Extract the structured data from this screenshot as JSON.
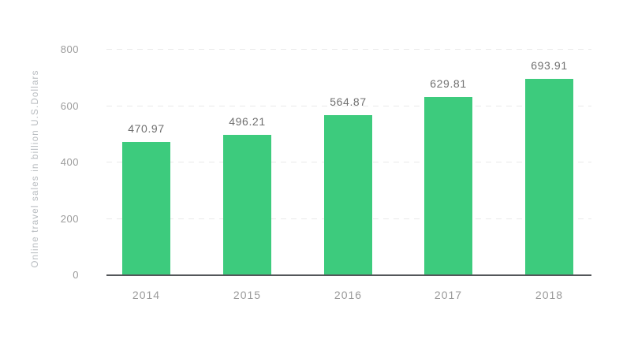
{
  "chart_data": {
    "type": "bar",
    "title": "",
    "xlabel": "",
    "ylabel": "Online travel sales in billion U.S.Dollars",
    "categories": [
      "2014",
      "2015",
      "2016",
      "2017",
      "2018"
    ],
    "values": [
      470.97,
      496.21,
      564.87,
      629.81,
      693.91
    ],
    "value_labels": [
      "470.97",
      "496.21",
      "564.87",
      "629.81",
      "693.91"
    ],
    "ylim": [
      0,
      800
    ],
    "yticks": [
      0,
      200,
      400,
      600,
      800
    ],
    "ytick_labels": [
      "0",
      "200",
      "400",
      "600",
      "800"
    ],
    "grid": "horizontal-dashed",
    "legend": "none",
    "colors": {
      "bar": "#3dcb7d",
      "value_label": "#6f6f6f",
      "axis_tick": "#9b9b9b",
      "x_label": "#9a9a9a",
      "y_title": "#b7bbbf",
      "gridline": "#e9e9e9",
      "baseline": "#54575a",
      "background": "#ffffff"
    }
  }
}
